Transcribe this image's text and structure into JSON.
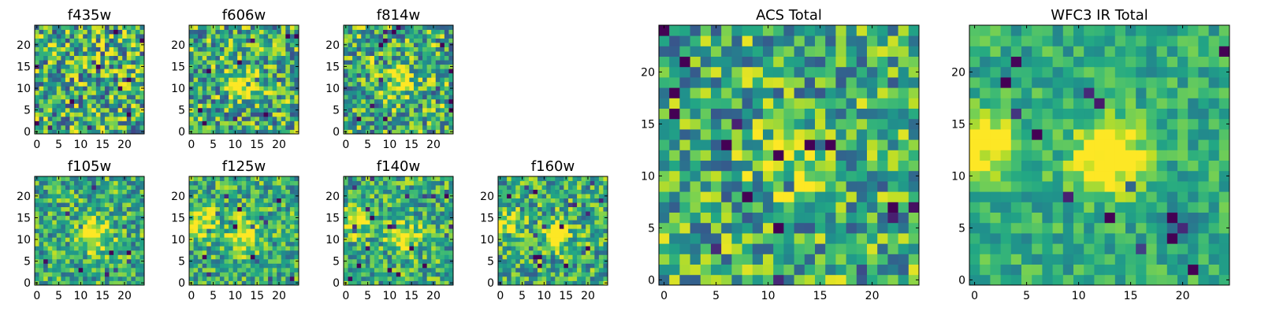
{
  "figure": {
    "colormap": "viridis",
    "panels": [
      {
        "id": "f435w",
        "title": "f435w",
        "xticks": [
          0,
          5,
          10,
          15,
          20
        ],
        "yticks": [
          0,
          5,
          10,
          15,
          20
        ]
      },
      {
        "id": "f606w",
        "title": "f606w",
        "xticks": [
          0,
          5,
          10,
          15,
          20
        ],
        "yticks": [
          0,
          5,
          10,
          15,
          20
        ]
      },
      {
        "id": "f814w",
        "title": "f814w",
        "xticks": [
          0,
          5,
          10,
          15,
          20
        ],
        "yticks": [
          0,
          5,
          10,
          15,
          20
        ]
      },
      {
        "id": "f105w",
        "title": "f105w",
        "xticks": [
          0,
          5,
          10,
          15,
          20
        ],
        "yticks": [
          0,
          5,
          10,
          15,
          20
        ]
      },
      {
        "id": "f125w",
        "title": "f125w",
        "xticks": [
          0,
          5,
          10,
          15,
          20
        ],
        "yticks": [
          0,
          5,
          10,
          15,
          20
        ]
      },
      {
        "id": "f140w",
        "title": "f140w",
        "xticks": [
          0,
          5,
          10,
          15,
          20
        ],
        "yticks": [
          0,
          5,
          10,
          15,
          20
        ]
      },
      {
        "id": "f160w",
        "title": "f160w",
        "xticks": [
          0,
          5,
          10,
          15,
          20
        ],
        "yticks": [
          0,
          5,
          10,
          15,
          20
        ]
      },
      {
        "id": "acs_total",
        "title": "ACS Total",
        "xticks": [
          0,
          5,
          10,
          15,
          20
        ],
        "yticks": [
          0,
          5,
          10,
          15,
          20
        ]
      },
      {
        "id": "wfc3_ir_total",
        "title": "WFC3 IR Total",
        "xticks": [
          0,
          5,
          10,
          15,
          20
        ],
        "yticks": [
          0,
          5,
          10,
          15,
          20
        ]
      }
    ]
  },
  "chart_data": [
    {
      "type": "heatmap",
      "title": "f435w",
      "grid_size": [
        25,
        25
      ],
      "xlim": [
        -0.5,
        24.5
      ],
      "ylim": [
        -0.5,
        24.5
      ],
      "grid": false,
      "colormap": "viridis",
      "description_of_values": "noisy stamp, no obvious central source",
      "features": {
        "noise": 0.42,
        "sources": []
      }
    },
    {
      "type": "heatmap",
      "title": "f606w",
      "grid_size": [
        25,
        25
      ],
      "xlim": [
        -0.5,
        24.5
      ],
      "ylim": [
        -0.5,
        24.5
      ],
      "grid": false,
      "colormap": "viridis",
      "features": {
        "noise": 0.38,
        "sources": [
          {
            "x": 12,
            "y": 11,
            "amp": 0.35,
            "sigma": 2.2
          }
        ]
      }
    },
    {
      "type": "heatmap",
      "title": "f814w",
      "grid_size": [
        25,
        25
      ],
      "xlim": [
        -0.5,
        24.5
      ],
      "ylim": [
        -0.5,
        24.5
      ],
      "grid": false,
      "colormap": "viridis",
      "features": {
        "noise": 0.38,
        "sources": [
          {
            "x": 12,
            "y": 11,
            "amp": 0.35,
            "sigma": 2.2
          }
        ]
      }
    },
    {
      "type": "heatmap",
      "title": "f105w",
      "grid_size": [
        25,
        25
      ],
      "xlim": [
        -0.5,
        24.5
      ],
      "ylim": [
        -0.5,
        24.5
      ],
      "grid": false,
      "colormap": "viridis",
      "features": {
        "noise": 0.3,
        "sources": [
          {
            "x": 13,
            "y": 11,
            "amp": 0.5,
            "sigma": 2.5
          }
        ]
      }
    },
    {
      "type": "heatmap",
      "title": "f125w",
      "grid_size": [
        25,
        25
      ],
      "xlim": [
        -0.5,
        24.5
      ],
      "ylim": [
        -0.5,
        24.5
      ],
      "grid": false,
      "colormap": "viridis",
      "features": {
        "noise": 0.3,
        "sources": [
          {
            "x": 12,
            "y": 11,
            "amp": 0.45,
            "sigma": 2.6
          },
          {
            "x": 2,
            "y": 14,
            "amp": 0.4,
            "sigma": 2.5
          }
        ]
      }
    },
    {
      "type": "heatmap",
      "title": "f140w",
      "grid_size": [
        25,
        25
      ],
      "xlim": [
        -0.5,
        24.5
      ],
      "ylim": [
        -0.5,
        24.5
      ],
      "grid": false,
      "colormap": "viridis",
      "features": {
        "noise": 0.3,
        "sources": [
          {
            "x": 13,
            "y": 11,
            "amp": 0.5,
            "sigma": 2.3
          },
          {
            "x": 2,
            "y": 14,
            "amp": 0.4,
            "sigma": 2.3
          }
        ]
      }
    },
    {
      "type": "heatmap",
      "title": "f160w",
      "grid_size": [
        25,
        25
      ],
      "xlim": [
        -0.5,
        24.5
      ],
      "ylim": [
        -0.5,
        24.5
      ],
      "grid": false,
      "colormap": "viridis",
      "features": {
        "noise": 0.32,
        "sources": [
          {
            "x": 13,
            "y": 11,
            "amp": 0.55,
            "sigma": 2.0
          },
          {
            "x": 1,
            "y": 14,
            "amp": 0.35,
            "sigma": 2.0
          }
        ]
      }
    },
    {
      "type": "heatmap",
      "title": "ACS Total",
      "grid_size": [
        25,
        25
      ],
      "xlim": [
        -0.5,
        24.5
      ],
      "ylim": [
        -0.5,
        24.5
      ],
      "grid": false,
      "colormap": "viridis",
      "features": {
        "noise": 0.35,
        "sources": [
          {
            "x": 12,
            "y": 11,
            "amp": 0.3,
            "sigma": 2.0
          }
        ]
      }
    },
    {
      "type": "heatmap",
      "title": "WFC3 IR Total",
      "grid_size": [
        25,
        25
      ],
      "xlim": [
        -0.5,
        24.5
      ],
      "ylim": [
        -0.5,
        24.5
      ],
      "grid": false,
      "colormap": "viridis",
      "features": {
        "noise": 0.18,
        "sources": [
          {
            "x": 13,
            "y": 12,
            "amp": 0.6,
            "sigma": 2.4
          },
          {
            "x": 1,
            "y": 13,
            "amp": 0.45,
            "sigma": 2.2
          },
          {
            "x": 20,
            "y": 5,
            "amp": -0.5,
            "sigma": 1.0
          }
        ]
      }
    }
  ]
}
